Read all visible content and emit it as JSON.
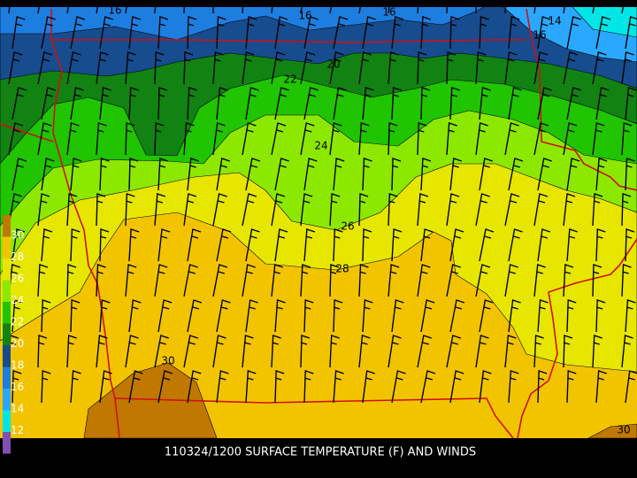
{
  "map": {
    "caption": "110324/1200 SURFACE TEMPERATURE (F) AND WINDS",
    "contour_labels": [
      "16",
      "16",
      "16",
      "14",
      "16",
      "20",
      "22",
      "24",
      "26",
      "28",
      "30",
      "30"
    ],
    "legend": {
      "labels": [
        "30",
        "28",
        "26",
        "24",
        "22",
        "20",
        "18",
        "16",
        "14",
        "12"
      ]
    }
  }
}
